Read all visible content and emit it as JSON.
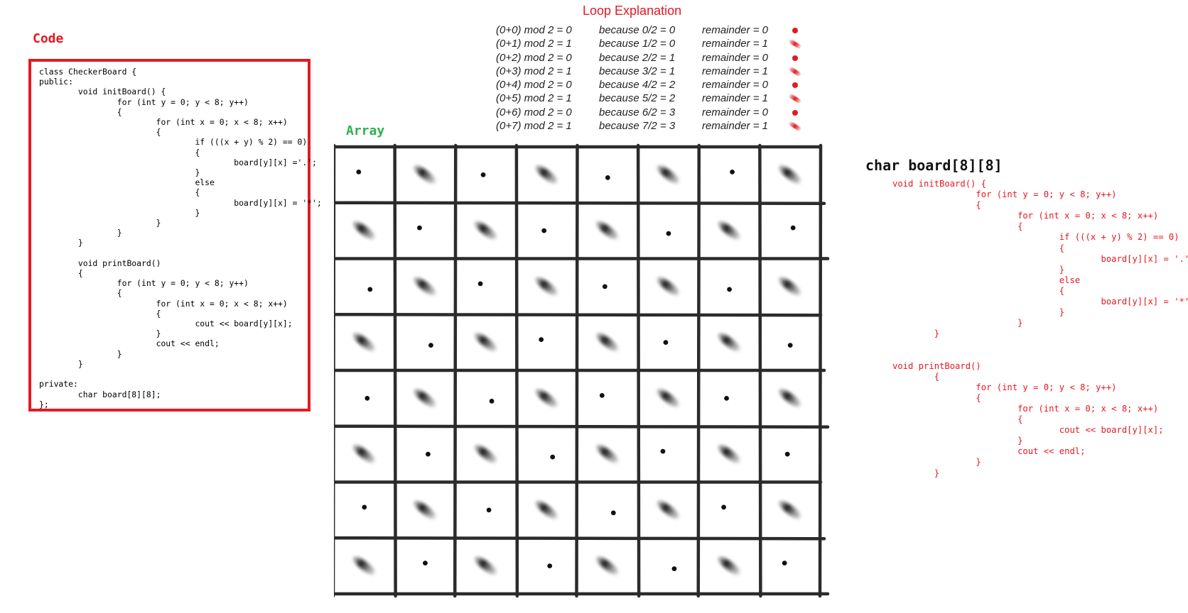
{
  "code_panel": {
    "title": "Code",
    "lines": [
      "class CheckerBoard {",
      "public:",
      "        void initBoard() {",
      "                for (int y = 0; y < 8; y++)",
      "                {",
      "                        for (int x = 0; x < 8; x++)",
      "                        {",
      "                                if (((x + y) % 2) == 0)",
      "                                {",
      "                                        board[y][x] ='.';",
      "                                }",
      "                                else",
      "                                {",
      "                                        board[y][x] = '*';",
      "                                }",
      "                        }",
      "                }",
      "        }",
      "",
      "        void printBoard()",
      "        {",
      "                for (int y = 0; y < 8; y++)",
      "                {",
      "                        for (int x = 0; x < 8; x++)",
      "                        {",
      "                                cout << board[y][x];",
      "                        }",
      "                        cout << endl;",
      "                }",
      "        }",
      "",
      "private:",
      "        char board[8][8];",
      "};"
    ]
  },
  "loop_explanation": {
    "title": "Loop Explanation",
    "rows": [
      {
        "expr": "(0+0) mod 2 = 0",
        "because": "because 0/2 = 0",
        "remainder": "remainder = 0",
        "mark": "dot"
      },
      {
        "expr": "(0+1) mod 2 = 1",
        "because": "because 1/2 = 0",
        "remainder": "remainder = 1",
        "mark": "dash"
      },
      {
        "expr": "(0+2) mod 2 = 0",
        "because": "because 2/2 = 1",
        "remainder": "remainder = 0",
        "mark": "dot"
      },
      {
        "expr": "(0+3) mod 2 = 1",
        "because": "because 3/2 = 1",
        "remainder": "remainder = 1",
        "mark": "dash"
      },
      {
        "expr": "(0+4) mod 2 = 0",
        "because": "because 4/2 = 2",
        "remainder": "remainder = 0",
        "mark": "dot"
      },
      {
        "expr": "(0+5) mod 2 = 1",
        "because": "because 5/2 = 2",
        "remainder": "remainder = 1",
        "mark": "dash"
      },
      {
        "expr": "(0+6) mod 2 = 0",
        "because": "because 6/2 = 3",
        "remainder": "remainder = 0",
        "mark": "dot"
      },
      {
        "expr": "(0+7) mod 2 = 1",
        "because": "because 7/2 = 3",
        "remainder": "remainder = 1",
        "mark": "dash"
      }
    ]
  },
  "array_panel": {
    "title": "Array",
    "rows": 8,
    "cols": 8,
    "even_cell_mark": "dot",
    "odd_cell_mark": "dash"
  },
  "right_panel": {
    "title": "char board[8][8]",
    "lines": [
      "void initBoard() {",
      "                for (int y = 0; y < 8; y++)",
      "                {",
      "                        for (int x = 0; x < 8; x++)",
      "                        {",
      "                                if (((x + y) % 2) == 0)",
      "                                {",
      "                                        board[y][x] = '.';",
      "                                }",
      "                                else",
      "                                {",
      "                                        board[y][x] = '*';",
      "                                }",
      "                        }",
      "        }",
      "",
      "",
      "void printBoard()",
      "        {",
      "                for (int y = 0; y < 8; y++)",
      "                {",
      "                        for (int x = 0; x < 8; x++)",
      "                        {",
      "                                cout << board[y][x];",
      "                        }",
      "                        cout << endl;",
      "                }",
      "        }"
    ]
  },
  "colors": {
    "accent_red": "#e8171f",
    "array_green": "#2bb04c",
    "grid_line": "#2b2b2b"
  }
}
